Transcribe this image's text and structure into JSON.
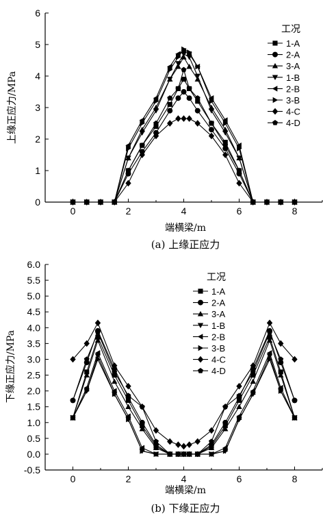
{
  "chart_data": [
    {
      "type": "line",
      "caption": "(a) 上缘正应力",
      "xlabel": "端横梁/m",
      "ylabel": "上缘正应力/MPa",
      "xlim": [
        -1,
        9
      ],
      "ylim": [
        0,
        6
      ],
      "xticks": [
        "0",
        "2",
        "4",
        "6",
        "8"
      ],
      "yticks": [
        "0",
        "1",
        "2",
        "3",
        "4",
        "5",
        "6"
      ],
      "legend_title": "工况",
      "legend_position": "top-right",
      "x": [
        0,
        0.5,
        1,
        1.5,
        2,
        2.5,
        3,
        3.5,
        3.8,
        4,
        4.2,
        4.5,
        5,
        5.5,
        6,
        6.5,
        7,
        7.5,
        8
      ],
      "series": [
        {
          "name": "1-A",
          "marker": "square",
          "values": [
            0,
            0,
            0,
            0,
            1.0,
            1.8,
            2.4,
            3.1,
            3.6,
            3.9,
            3.6,
            3.2,
            2.5,
            1.9,
            1.0,
            0,
            0,
            0,
            0
          ]
        },
        {
          "name": "2-A",
          "marker": "circle",
          "values": [
            0,
            0,
            0,
            0,
            0.9,
            1.6,
            2.2,
            2.9,
            3.3,
            3.5,
            3.3,
            2.9,
            2.3,
            1.7,
            0.9,
            0,
            0,
            0,
            0
          ]
        },
        {
          "name": "3-A",
          "marker": "triangle-up",
          "values": [
            0,
            0,
            0,
            0,
            1.4,
            2.3,
            3.0,
            3.9,
            4.3,
            4.6,
            4.3,
            3.9,
            3.0,
            2.3,
            1.4,
            0,
            0,
            0,
            0
          ]
        },
        {
          "name": "1-B",
          "marker": "triangle-down",
          "values": [
            0,
            0,
            0,
            0,
            1.4,
            2.2,
            2.9,
            3.9,
            4.4,
            4.7,
            4.6,
            4.0,
            2.9,
            2.2,
            1.4,
            0,
            0,
            0,
            0
          ]
        },
        {
          "name": "2-B",
          "marker": "triangle-left",
          "values": [
            0,
            0,
            0,
            0,
            1.8,
            2.6,
            3.3,
            4.3,
            4.7,
            4.8,
            4.7,
            4.3,
            3.3,
            2.6,
            1.8,
            0,
            0,
            0,
            0
          ]
        },
        {
          "name": "3-B",
          "marker": "triangle-right",
          "values": [
            0,
            0,
            0,
            0,
            1.7,
            2.5,
            3.2,
            4.2,
            4.6,
            4.85,
            4.75,
            4.3,
            3.2,
            2.5,
            1.7,
            0,
            0,
            0,
            0
          ]
        },
        {
          "name": "4-C",
          "marker": "diamond",
          "values": [
            0,
            0,
            0,
            0,
            0.6,
            1.5,
            2.1,
            2.5,
            2.65,
            2.65,
            2.65,
            2.5,
            2.1,
            1.5,
            0.6,
            0,
            0,
            0,
            0
          ]
        },
        {
          "name": "4-D",
          "marker": "pentagon",
          "values": [
            0,
            0,
            0,
            0,
            1.0,
            1.8,
            2.5,
            3.3,
            3.6,
            4.2,
            3.6,
            3.3,
            2.5,
            1.8,
            1.0,
            0,
            0,
            0,
            0
          ]
        }
      ]
    },
    {
      "type": "line",
      "caption": "(b) 下缘正应力",
      "xlabel": "端横梁/m",
      "ylabel": "下缘正应力/MPa",
      "xlim": [
        -1,
        9
      ],
      "ylim": [
        -0.5,
        6.0
      ],
      "xticks": [
        "0",
        "2",
        "4",
        "6",
        "8"
      ],
      "yticks": [
        "-0.5",
        "0.0",
        "0.5",
        "1.0",
        "1.5",
        "2.0",
        "2.5",
        "3.0",
        "3.5",
        "4.0",
        "4.5",
        "5.0",
        "5.5",
        "6.0"
      ],
      "legend_title": "工况",
      "legend_position": "top-center",
      "x": [
        0,
        0.5,
        0.9,
        1.5,
        2,
        2.5,
        3,
        3.5,
        3.8,
        4,
        4.2,
        4.5,
        5,
        5.5,
        6,
        6.5,
        7.1,
        7.5,
        8
      ],
      "series": [
        {
          "name": "1-A",
          "marker": "square",
          "values": [
            1.15,
            2.6,
            3.7,
            2.5,
            1.7,
            0.9,
            0.25,
            0,
            0,
            0,
            0,
            0,
            0.25,
            0.9,
            1.7,
            2.5,
            3.7,
            2.6,
            1.15
          ]
        },
        {
          "name": "2-A",
          "marker": "circle",
          "values": [
            1.7,
            2.9,
            3.9,
            2.7,
            1.8,
            1.0,
            0.3,
            0,
            0,
            0,
            0,
            0,
            0.3,
            1.0,
            1.8,
            2.7,
            3.9,
            2.9,
            1.7
          ]
        },
        {
          "name": "3-A",
          "marker": "triangle-up",
          "values": [
            1.15,
            2.5,
            3.6,
            2.3,
            1.5,
            0.8,
            0.2,
            0,
            0,
            0,
            0,
            0,
            0.2,
            0.8,
            1.5,
            2.3,
            3.6,
            2.5,
            1.15
          ]
        },
        {
          "name": "1-B",
          "marker": "triangle-down",
          "values": [
            1.15,
            2.0,
            3.1,
            1.9,
            1.1,
            0.1,
            0,
            0,
            0,
            0,
            0,
            0,
            0,
            0.1,
            1.1,
            1.9,
            3.1,
            2.0,
            1.15
          ]
        },
        {
          "name": "2-B",
          "marker": "triangle-left",
          "values": [
            1.15,
            2.1,
            3.2,
            2.0,
            1.2,
            0.2,
            0,
            0,
            0,
            0,
            0,
            0,
            0,
            0.2,
            1.2,
            2.0,
            3.2,
            2.1,
            1.15
          ]
        },
        {
          "name": "3-B",
          "marker": "triangle-right",
          "values": [
            1.15,
            2.0,
            3.0,
            1.9,
            1.1,
            0.1,
            0,
            0,
            0,
            0,
            0,
            0,
            0,
            0.1,
            1.1,
            1.9,
            3.0,
            2.0,
            1.15
          ]
        },
        {
          "name": "4-C",
          "marker": "diamond",
          "values": [
            3.0,
            3.5,
            4.15,
            2.8,
            2.15,
            1.5,
            0.75,
            0.4,
            0.3,
            0.25,
            0.3,
            0.4,
            0.75,
            1.5,
            2.15,
            2.8,
            4.15,
            3.5,
            3.0
          ]
        },
        {
          "name": "4-D",
          "marker": "pentagon",
          "values": [
            1.7,
            3.0,
            3.85,
            2.6,
            1.85,
            1.5,
            0.4,
            0,
            0,
            0,
            0,
            0,
            0.4,
            1.5,
            1.85,
            2.6,
            3.85,
            3.0,
            1.7
          ]
        }
      ]
    }
  ]
}
